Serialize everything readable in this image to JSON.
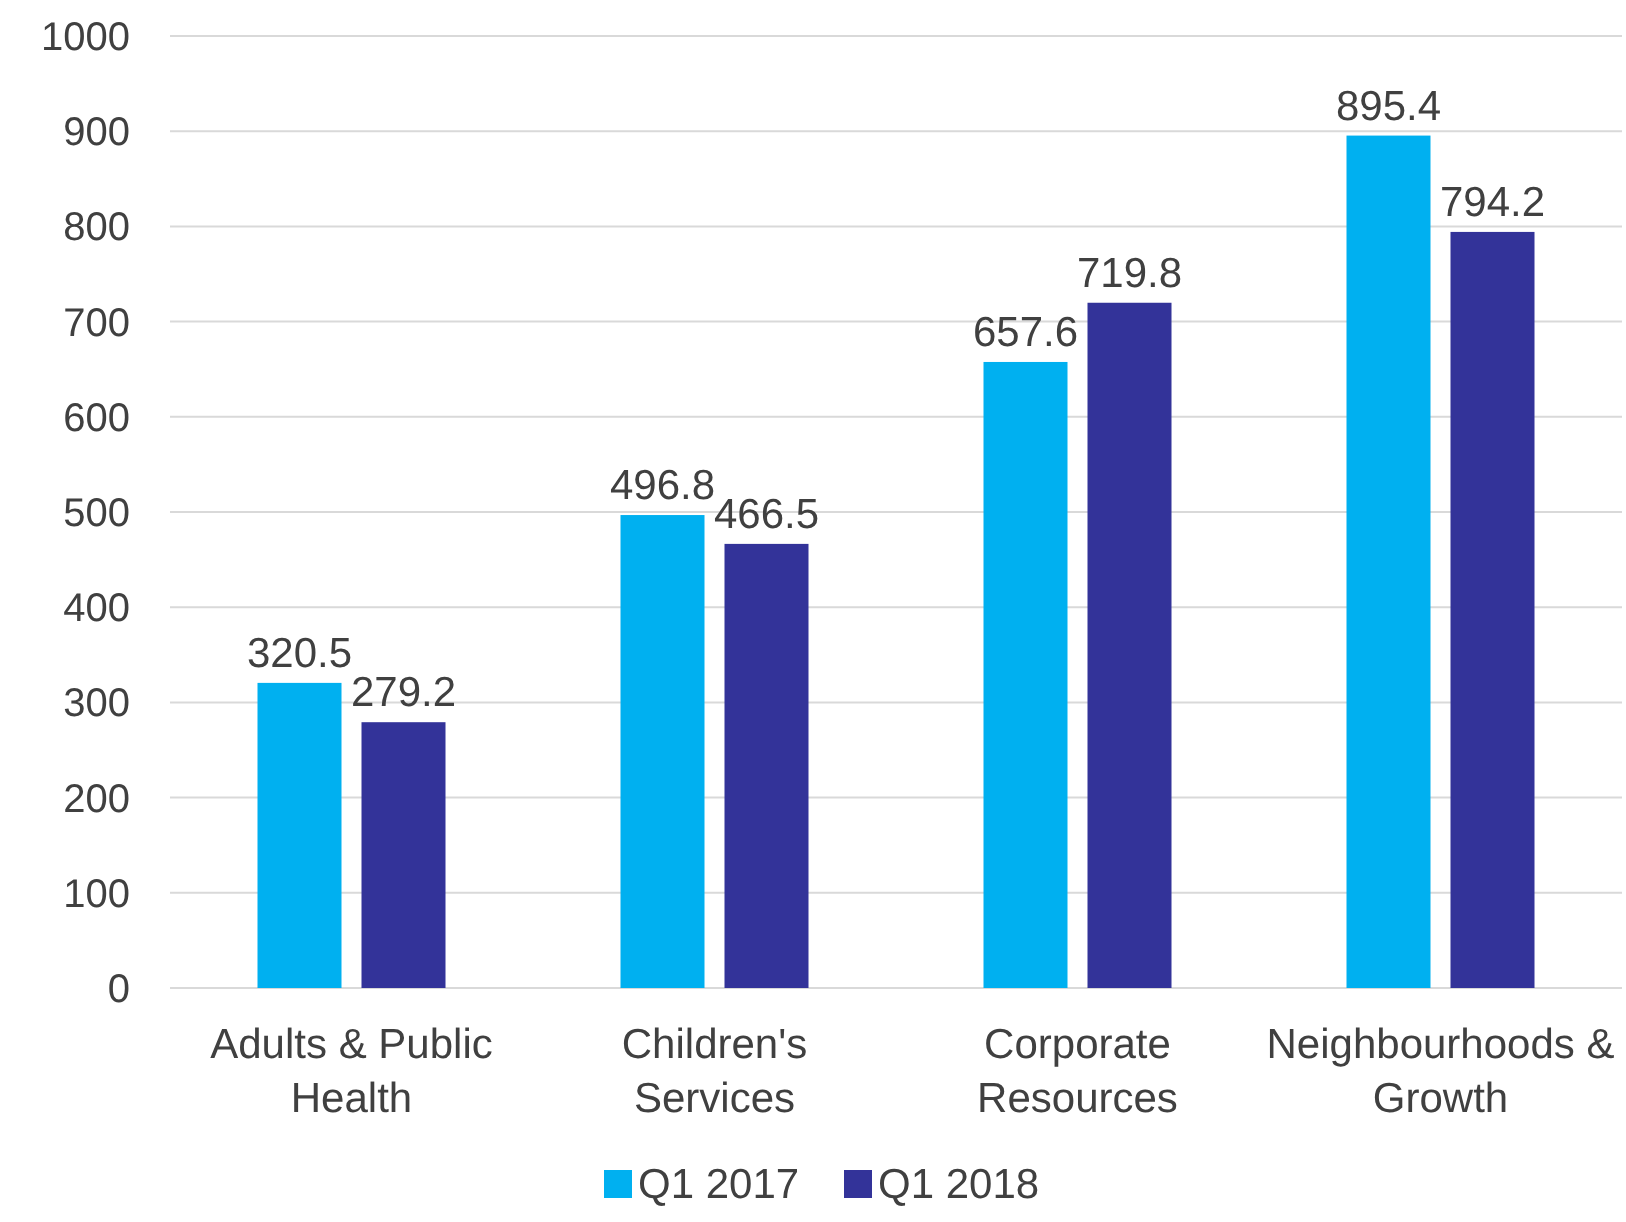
{
  "chart_data": {
    "type": "bar",
    "categories": [
      "Adults & Public Health",
      "Children's Services",
      "Corporate Resources",
      "Neighbourhoods & Growth"
    ],
    "series": [
      {
        "name": "Q1 2017",
        "color": "#00b0f0",
        "values": [
          320.5,
          496.8,
          657.6,
          895.4
        ]
      },
      {
        "name": "Q1 2018",
        "color": "#333399",
        "values": [
          279.2,
          466.5,
          719.8,
          794.2
        ]
      }
    ],
    "ylim": [
      0,
      1000
    ],
    "yticks": [
      0,
      100,
      200,
      300,
      400,
      500,
      600,
      700,
      800,
      900,
      1000
    ],
    "grid": "y",
    "legend": "bottom",
    "data_labels": true
  }
}
